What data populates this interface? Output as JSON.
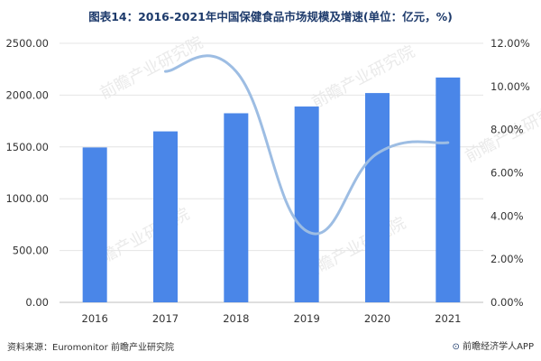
{
  "chart_data": {
    "type": "bar+line",
    "title": "图表14：2016-2021年中国保健食品市场规模及增速(单位：亿元，%)",
    "categories": [
      "2016",
      "2017",
      "2018",
      "2019",
      "2020",
      "2021"
    ],
    "series": [
      {
        "type": "bar",
        "axis": "left",
        "values": [
          1495,
          1650,
          1825,
          1890,
          2020,
          2170
        ]
      },
      {
        "type": "line",
        "axis": "right",
        "values": [
          null,
          10.7,
          10.7,
          3.3,
          6.9,
          7.4
        ]
      }
    ],
    "y_left": {
      "ylim": [
        0,
        2500
      ],
      "ticks": [
        "0.00",
        "500.00",
        "1000.00",
        "1500.00",
        "2000.00",
        "2500.00"
      ]
    },
    "y_right": {
      "ylim": [
        0,
        12
      ],
      "ticks": [
        "0.00%",
        "2.00%",
        "4.00%",
        "6.00%",
        "8.00%",
        "10.00%",
        "12.00%"
      ]
    },
    "grid": true,
    "legend": "none",
    "colors": {
      "bar": "#4a86e8",
      "line": "#9dbde3",
      "grid": "#e4e4e4",
      "axis_text": "#333333"
    }
  },
  "footer": {
    "source": "资料来源：Euromonitor 前瞻产业研究院",
    "brand": "前瞻经济学人APP"
  },
  "watermark": "前瞻产业研究院"
}
